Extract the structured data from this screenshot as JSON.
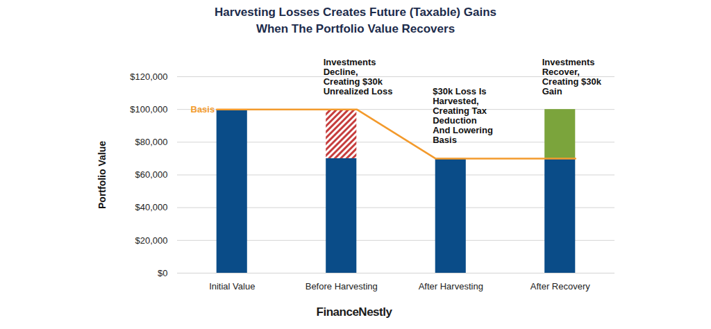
{
  "chart_data": {
    "type": "bar",
    "title": "Harvesting Losses Creates Future (Taxable) Gains\nWhen The Portfolio Value Recovers",
    "ylabel": "Portfolio Value",
    "caption": "FinanceNestly",
    "categories": [
      "Initial Value",
      "Before Harvesting",
      "After Harvesting",
      "After Recovery"
    ],
    "stacked": true,
    "series": [
      {
        "type": "bar",
        "color": "#0a4c88",
        "values": [
          100000,
          70000,
          70000,
          70000
        ]
      },
      {
        "type": "bar",
        "color": "#c63d3d",
        "line_style": "hatched",
        "values": [
          null,
          30000,
          null,
          null
        ]
      },
      {
        "type": "bar",
        "color": "#7ba43c",
        "values": [
          null,
          null,
          null,
          30000
        ]
      },
      {
        "type": "line",
        "name": "Basis",
        "color": "#f39a2c",
        "values": [
          100000,
          100000,
          70000,
          70000
        ]
      }
    ],
    "annotations": [
      {
        "category": "Before Harvesting",
        "text": "Investments\nDecline,\nCreating $30k\nUnrealized Loss"
      },
      {
        "category": "After Harvesting",
        "text": "$30k Loss Is\nHarvested,\nCreating Tax\nDeduction\nAnd Lowering\nBasis"
      },
      {
        "category": "After Recovery",
        "text": "Investments\nRecover,\nCreating $30k\nGain"
      }
    ],
    "ylim": [
      0,
      120000
    ],
    "yticks": [
      {
        "value": 0,
        "label": "$0"
      },
      {
        "value": 20000,
        "label": "$20,000"
      },
      {
        "value": 40000,
        "label": "$40,000"
      },
      {
        "value": 60000,
        "label": "$60,000"
      },
      {
        "value": 80000,
        "label": "$80,000"
      },
      {
        "value": 100000,
        "label": "$100,000"
      },
      {
        "value": 120000,
        "label": "$120,000"
      }
    ],
    "grid": true
  }
}
